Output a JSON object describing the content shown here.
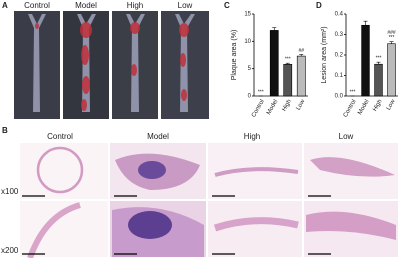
{
  "panel_a": {
    "label": "A",
    "columns": [
      "Control",
      "Model",
      "High",
      "Low"
    ]
  },
  "panel_b": {
    "label": "B",
    "columns": [
      "Control",
      "Model",
      "High",
      "Low"
    ],
    "rows": [
      "x100",
      "x200"
    ]
  },
  "chart_data": [
    {
      "type": "bar",
      "panel_label": "C",
      "y_label": "Plaque area (%)",
      "categories": [
        "Control",
        "Model",
        "High",
        "Low"
      ],
      "values": [
        0,
        12,
        5.8,
        7.3
      ],
      "errors": [
        0,
        0.5,
        0.2,
        0.3
      ],
      "colors": [
        "#ffffff",
        "#111111",
        "#555555",
        "#bbbbbb"
      ],
      "annotations": [
        [
          "***"
        ],
        [],
        [
          "***"
        ],
        [
          "##"
        ]
      ],
      "ylim": [
        0,
        15
      ],
      "yticks": [
        0,
        5,
        10,
        15
      ]
    },
    {
      "type": "bar",
      "panel_label": "D",
      "y_label": "Lesion area (mm²)",
      "categories": [
        "Control",
        "Model",
        "High",
        "Low"
      ],
      "values": [
        0,
        0.345,
        0.155,
        0.255
      ],
      "errors": [
        0,
        0.02,
        0.01,
        0.01
      ],
      "colors": [
        "#ffffff",
        "#111111",
        "#555555",
        "#bbbbbb"
      ],
      "annotations": [
        [
          "***"
        ],
        [],
        [
          "***"
        ],
        [
          "###",
          "***"
        ]
      ],
      "ylim": [
        0,
        0.4
      ],
      "yticks": [
        {
          "value": 0,
          "label": "0.0"
        },
        0.1,
        0.2,
        0.3,
        0.4
      ]
    }
  ]
}
